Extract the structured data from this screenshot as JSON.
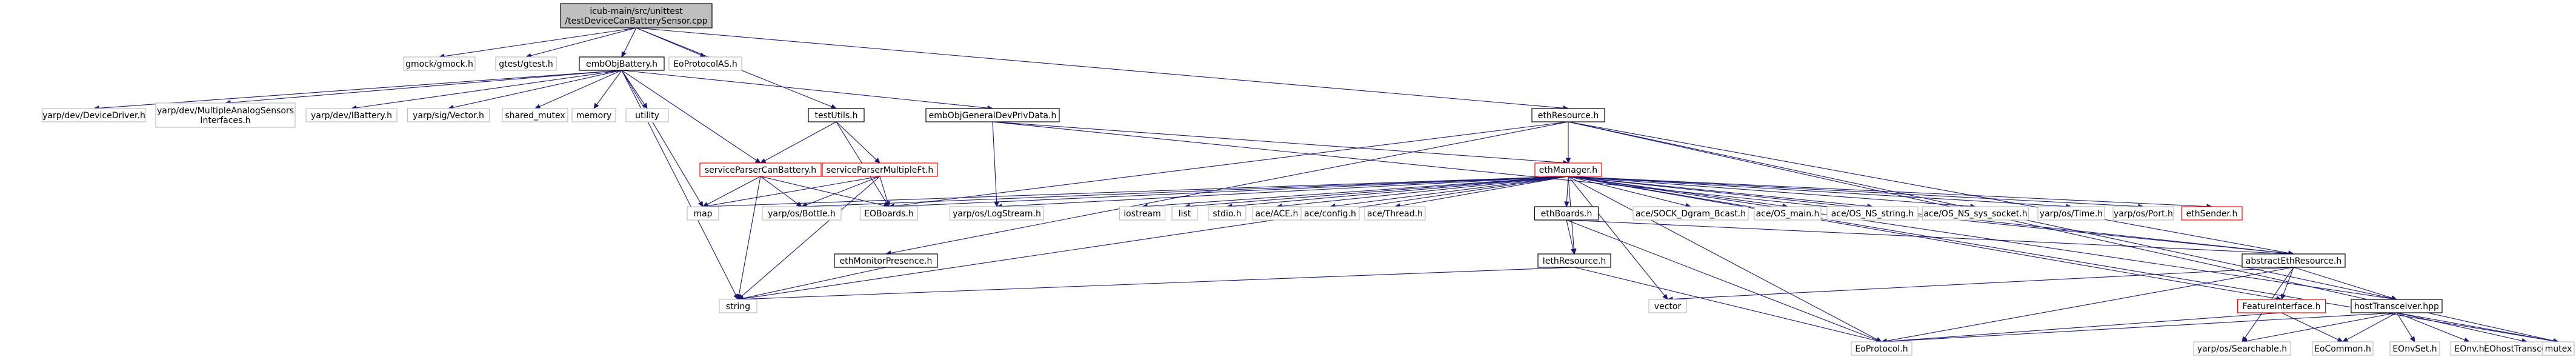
{
  "nodes": [
    {
      "id": "root",
      "lines": [
        "icub-main/src/unittest",
        "/testDeviceCanBatterySensor.cpp"
      ],
      "style": "root"
    },
    {
      "id": "gmock",
      "lines": [
        "gmock/gmock.h"
      ],
      "style": "gray"
    },
    {
      "id": "gtest",
      "lines": [
        "gtest/gtest.h"
      ],
      "style": "gray"
    },
    {
      "id": "embObjBattery",
      "lines": [
        "embObjBattery.h"
      ],
      "style": "black"
    },
    {
      "id": "EoProtocolAS",
      "lines": [
        "EoProtocolAS.h"
      ],
      "style": "gray"
    },
    {
      "id": "testUtils",
      "lines": [
        "testUtils.h"
      ],
      "style": "black"
    },
    {
      "id": "ethResource",
      "lines": [
        "ethResource.h"
      ],
      "style": "black"
    },
    {
      "id": "DeviceDriver",
      "lines": [
        "yarp/dev/DeviceDriver.h"
      ],
      "style": "gray"
    },
    {
      "id": "MultipleAnalogSensors",
      "lines": [
        "yarp/dev/MultipleAnalogSensors",
        "Interfaces.h"
      ],
      "style": "gray"
    },
    {
      "id": "IBattery",
      "lines": [
        "yarp/dev/IBattery.h"
      ],
      "style": "gray"
    },
    {
      "id": "Vector",
      "lines": [
        "yarp/sig/Vector.h"
      ],
      "style": "gray"
    },
    {
      "id": "shared_mutex",
      "lines": [
        "shared_mutex"
      ],
      "style": "gray"
    },
    {
      "id": "memory",
      "lines": [
        "memory"
      ],
      "style": "gray"
    },
    {
      "id": "utility",
      "lines": [
        "utility"
      ],
      "style": "gray"
    },
    {
      "id": "embObjGeneralDevPrivData",
      "lines": [
        "embObjGeneralDevPrivData.h"
      ],
      "style": "black"
    },
    {
      "id": "serviceParserCanBattery",
      "lines": [
        "serviceParserCanBattery.h"
      ],
      "style": "red"
    },
    {
      "id": "serviceParserMultipleFt",
      "lines": [
        "serviceParserMultipleFt.h"
      ],
      "style": "red"
    },
    {
      "id": "ethManager",
      "lines": [
        "ethManager.h"
      ],
      "style": "red"
    },
    {
      "id": "map",
      "lines": [
        "map"
      ],
      "style": "gray"
    },
    {
      "id": "Bottle",
      "lines": [
        "yarp/os/Bottle.h"
      ],
      "style": "gray"
    },
    {
      "id": "EOBoards",
      "lines": [
        "EOBoards.h"
      ],
      "style": "gray"
    },
    {
      "id": "LogStream",
      "lines": [
        "yarp/os/LogStream.h"
      ],
      "style": "gray"
    },
    {
      "id": "iostream",
      "lines": [
        "iostream"
      ],
      "style": "gray"
    },
    {
      "id": "list",
      "lines": [
        "list"
      ],
      "style": "gray"
    },
    {
      "id": "stdio",
      "lines": [
        "stdio.h"
      ],
      "style": "gray"
    },
    {
      "id": "ACE",
      "lines": [
        "ace/ACE.h"
      ],
      "style": "gray"
    },
    {
      "id": "config",
      "lines": [
        "ace/config.h"
      ],
      "style": "gray"
    },
    {
      "id": "Thread",
      "lines": [
        "ace/Thread.h"
      ],
      "style": "gray"
    },
    {
      "id": "ethBoards",
      "lines": [
        "ethBoards.h"
      ],
      "style": "black"
    },
    {
      "id": "SOCK_Dgram",
      "lines": [
        "ace/SOCK_Dgram_Bcast.h"
      ],
      "style": "gray"
    },
    {
      "id": "OS_main",
      "lines": [
        "ace/OS_main.h"
      ],
      "style": "gray"
    },
    {
      "id": "OS_NS_string",
      "lines": [
        "ace/OS_NS_string.h"
      ],
      "style": "gray"
    },
    {
      "id": "OS_NS_sys_socket",
      "lines": [
        "ace/OS_NS_sys_socket.h"
      ],
      "style": "gray"
    },
    {
      "id": "Time",
      "lines": [
        "yarp/os/Time.h"
      ],
      "style": "gray"
    },
    {
      "id": "Port",
      "lines": [
        "yarp/os/Port.h"
      ],
      "style": "gray"
    },
    {
      "id": "ethSender",
      "lines": [
        "ethSender.h"
      ],
      "style": "red"
    },
    {
      "id": "ethMonitorPresence",
      "lines": [
        "ethMonitorPresence.h"
      ],
      "style": "black"
    },
    {
      "id": "IethResource",
      "lines": [
        "IethResource.h"
      ],
      "style": "black"
    },
    {
      "id": "abstractEthResource",
      "lines": [
        "abstractEthResource.h"
      ],
      "style": "black"
    },
    {
      "id": "string",
      "lines": [
        "string"
      ],
      "style": "gray"
    },
    {
      "id": "vector",
      "lines": [
        "vector"
      ],
      "style": "gray"
    },
    {
      "id": "FeatureInterface",
      "lines": [
        "FeatureInterface.h"
      ],
      "style": "red"
    },
    {
      "id": "hostTransceiver",
      "lines": [
        "hostTransceiver.hpp"
      ],
      "style": "black"
    },
    {
      "id": "EoProtocol",
      "lines": [
        "EoProtocol.h"
      ],
      "style": "gray"
    },
    {
      "id": "Searchable",
      "lines": [
        "yarp/os/Searchable.h"
      ],
      "style": "gray"
    },
    {
      "id": "EoCommon",
      "lines": [
        "EoCommon.h"
      ],
      "style": "gray"
    },
    {
      "id": "EOnvSet",
      "lines": [
        "EOnvSet.h"
      ],
      "style": "gray"
    },
    {
      "id": "EOnv",
      "lines": [
        "EOnv.h"
      ],
      "style": "gray"
    },
    {
      "id": "EOhostTransceiver",
      "lines": [
        "EOhostTransceiver.h"
      ],
      "style": "gray"
    },
    {
      "id": "mutex",
      "lines": [
        "mutex"
      ],
      "style": "gray"
    }
  ],
  "edges": [
    [
      "root",
      "gmock"
    ],
    [
      "root",
      "gtest"
    ],
    [
      "root",
      "embObjBattery"
    ],
    [
      "root",
      "EoProtocolAS"
    ],
    [
      "root",
      "testUtils"
    ],
    [
      "root",
      "ethResource"
    ],
    [
      "embObjBattery",
      "DeviceDriver"
    ],
    [
      "embObjBattery",
      "MultipleAnalogSensors"
    ],
    [
      "embObjBattery",
      "IBattery"
    ],
    [
      "embObjBattery",
      "Vector"
    ],
    [
      "embObjBattery",
      "shared_mutex"
    ],
    [
      "embObjBattery",
      "memory"
    ],
    [
      "embObjBattery",
      "utility"
    ],
    [
      "embObjBattery",
      "embObjGeneralDevPrivData"
    ],
    [
      "embObjBattery",
      "serviceParserCanBattery"
    ],
    [
      "embObjBattery",
      "string"
    ],
    [
      "embObjBattery",
      "map"
    ],
    [
      "testUtils",
      "serviceParserCanBattery"
    ],
    [
      "testUtils",
      "serviceParserMultipleFt"
    ],
    [
      "testUtils",
      "EOBoards"
    ],
    [
      "embObjGeneralDevPrivData",
      "ethManager"
    ],
    [
      "embObjGeneralDevPrivData",
      "LogStream"
    ],
    [
      "embObjGeneralDevPrivData",
      "abstractEthResource"
    ],
    [
      "serviceParserCanBattery",
      "map"
    ],
    [
      "serviceParserCanBattery",
      "Bottle"
    ],
    [
      "serviceParserCanBattery",
      "EOBoards"
    ],
    [
      "serviceParserCanBattery",
      "string"
    ],
    [
      "serviceParserMultipleFt",
      "map"
    ],
    [
      "serviceParserMultipleFt",
      "Bottle"
    ],
    [
      "serviceParserMultipleFt",
      "EOBoards"
    ],
    [
      "serviceParserMultipleFt",
      "string"
    ],
    [
      "ethResource",
      "ethManager"
    ],
    [
      "ethResource",
      "EOBoards"
    ],
    [
      "ethResource",
      "ethMonitorPresence"
    ],
    [
      "ethResource",
      "abstractEthResource"
    ],
    [
      "ethResource",
      "hostTransceiver"
    ],
    [
      "ethResource",
      "mutex"
    ],
    [
      "ethManager",
      "map"
    ],
    [
      "ethManager",
      "Bottle"
    ],
    [
      "ethManager",
      "EOBoards"
    ],
    [
      "ethManager",
      "LogStream"
    ],
    [
      "ethManager",
      "iostream"
    ],
    [
      "ethManager",
      "list"
    ],
    [
      "ethManager",
      "stdio"
    ],
    [
      "ethManager",
      "ACE"
    ],
    [
      "ethManager",
      "config"
    ],
    [
      "ethManager",
      "Thread"
    ],
    [
      "ethManager",
      "ethBoards"
    ],
    [
      "ethManager",
      "SOCK_Dgram"
    ],
    [
      "ethManager",
      "OS_main"
    ],
    [
      "ethManager",
      "OS_NS_string"
    ],
    [
      "ethManager",
      "OS_NS_sys_socket"
    ],
    [
      "ethManager",
      "Time"
    ],
    [
      "ethManager",
      "Port"
    ],
    [
      "ethManager",
      "ethSender"
    ],
    [
      "ethManager",
      "string"
    ],
    [
      "ethManager",
      "vector"
    ],
    [
      "ethManager",
      "IethResource"
    ],
    [
      "ethManager",
      "abstractEthResource"
    ],
    [
      "ethManager",
      "EoProtocol"
    ],
    [
      "ethManager",
      "hostTransceiver"
    ],
    [
      "ethManager",
      "FeatureInterface"
    ],
    [
      "ethManager",
      "mutex"
    ],
    [
      "ethBoards",
      "IethResource"
    ],
    [
      "ethBoards",
      "abstractEthResource"
    ],
    [
      "ethBoards",
      "EoProtocol"
    ],
    [
      "ethMonitorPresence",
      "string"
    ],
    [
      "IethResource",
      "string"
    ],
    [
      "IethResource",
      "EoProtocol"
    ],
    [
      "abstractEthResource",
      "vector"
    ],
    [
      "abstractEthResource",
      "FeatureInterface"
    ],
    [
      "abstractEthResource",
      "hostTransceiver"
    ],
    [
      "abstractEthResource",
      "Searchable"
    ],
    [
      "abstractEthResource",
      "EoProtocol"
    ],
    [
      "FeatureInterface",
      "EoProtocol"
    ],
    [
      "FeatureInterface",
      "EoCommon"
    ],
    [
      "hostTransceiver",
      "EoProtocol"
    ],
    [
      "hostTransceiver",
      "Searchable"
    ],
    [
      "hostTransceiver",
      "EoCommon"
    ],
    [
      "hostTransceiver",
      "EOnvSet"
    ],
    [
      "hostTransceiver",
      "EOnv"
    ],
    [
      "hostTransceiver",
      "EOhostTransceiver"
    ],
    [
      "hostTransceiver",
      "mutex"
    ]
  ]
}
